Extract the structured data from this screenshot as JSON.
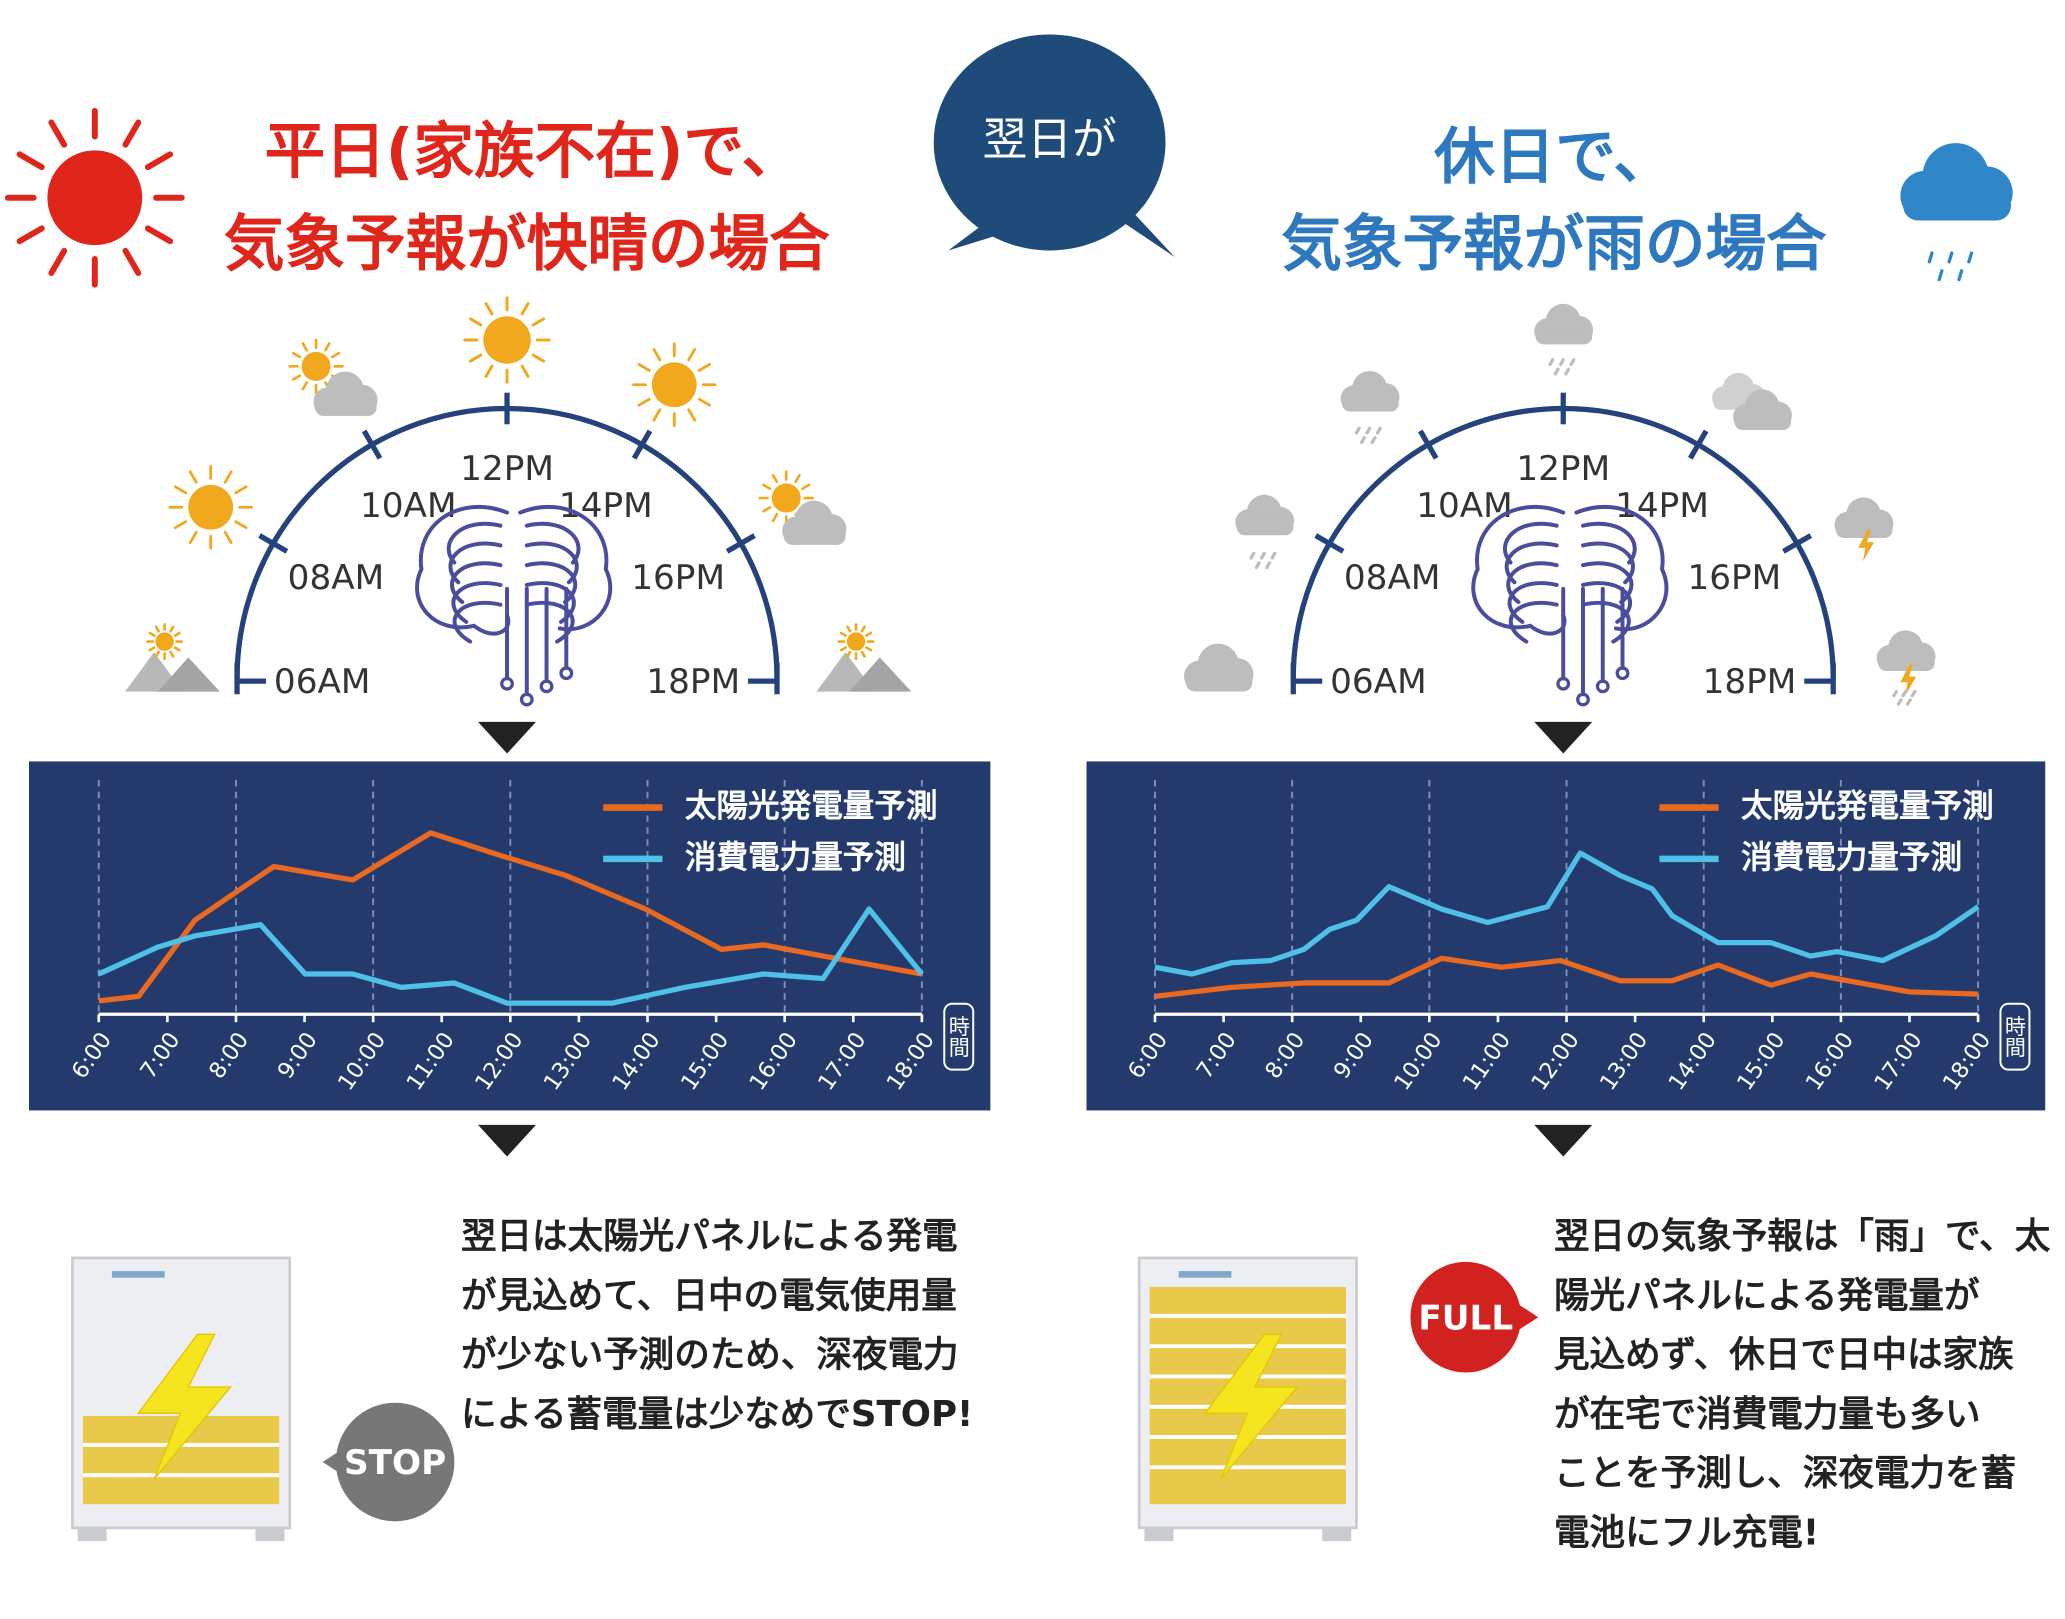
{
  "header": {
    "left_title": [
      "平日(家族不在)で、",
      "気象予報が快晴の場合"
    ],
    "center_bubble": "翌日が",
    "right_title": [
      "休日で、",
      "気象予報が雨の場合"
    ]
  },
  "clocks": [
    {
      "labels": [
        "06AM",
        "08AM",
        "10AM",
        "12PM",
        "14PM",
        "16PM",
        "18PM"
      ]
    },
    {
      "labels": [
        "06AM",
        "08AM",
        "10AM",
        "12PM",
        "14PM",
        "16PM",
        "18PM"
      ]
    }
  ],
  "chart_data": [
    {
      "type": "line",
      "x_axis_label": "時間",
      "xlim": [
        6,
        18
      ],
      "xticks": [
        {
          "value": 6,
          "label": "6:00"
        },
        {
          "value": 7,
          "label": "7:00"
        },
        {
          "value": 8,
          "label": "8:00"
        },
        {
          "value": 9,
          "label": "9:00"
        },
        {
          "value": 10,
          "label": "10:00"
        },
        {
          "value": 11,
          "label": "11:00"
        },
        {
          "value": 12,
          "label": "12:00"
        },
        {
          "value": 13,
          "label": "13:00"
        },
        {
          "value": 14,
          "label": "14:00"
        },
        {
          "value": 15,
          "label": "15:00"
        },
        {
          "value": 16,
          "label": "16:00"
        },
        {
          "value": 17,
          "label": "17:00"
        },
        {
          "value": 18,
          "label": "18:00"
        }
      ],
      "ylim": [
        0,
        100
      ],
      "grid": true,
      "series": [
        {
          "name": "太陽光発電量予測",
          "color": "#e8691f",
          "x": [
            6,
            6.58,
            7.4,
            8.55,
            9.7,
            10.84,
            11.85,
            12.81,
            13.97,
            15.08,
            15.69,
            16.56,
            18
          ],
          "values": [
            6,
            8,
            42,
            66,
            60,
            81,
            71,
            62,
            47,
            29,
            31,
            26,
            18
          ]
        },
        {
          "name": "消費電力量予測",
          "color": "#4fc0e8",
          "x": [
            6,
            6.86,
            7.4,
            8.36,
            9.01,
            9.7,
            10.41,
            11.18,
            11.95,
            13.49,
            14.54,
            15.69,
            16.56,
            17.23,
            18
          ],
          "values": [
            18,
            30,
            35,
            40,
            18,
            18,
            12,
            14,
            5,
            5,
            12,
            18,
            16,
            47,
            18
          ]
        }
      ]
    },
    {
      "type": "line",
      "x_axis_label": "時間",
      "xlim": [
        6,
        18
      ],
      "xticks": [
        {
          "value": 6,
          "label": "6:00"
        },
        {
          "value": 7,
          "label": "7:00"
        },
        {
          "value": 8,
          "label": "8:00"
        },
        {
          "value": 9,
          "label": "9:00"
        },
        {
          "value": 10,
          "label": "10:00"
        },
        {
          "value": 11,
          "label": "11:00"
        },
        {
          "value": 12,
          "label": "12:00"
        },
        {
          "value": 13,
          "label": "13:00"
        },
        {
          "value": 14,
          "label": "14:00"
        },
        {
          "value": 15,
          "label": "15:00"
        },
        {
          "value": 16,
          "label": "16:00"
        },
        {
          "value": 17,
          "label": "17:00"
        },
        {
          "value": 18,
          "label": "18:00"
        }
      ],
      "ylim": [
        0,
        100
      ],
      "grid": true,
      "series": [
        {
          "name": "太陽光発電量予測",
          "color": "#e8691f",
          "x": [
            6,
            7.11,
            8.17,
            9.41,
            10.18,
            11.05,
            11.91,
            12.78,
            13.54,
            14.21,
            14.98,
            15.56,
            17,
            18
          ],
          "values": [
            8,
            12,
            14,
            14,
            25,
            21,
            24,
            15,
            15,
            22,
            13,
            18,
            10,
            9
          ]
        },
        {
          "name": "消費電力量予測",
          "color": "#4fc0e8",
          "x": [
            6,
            6.54,
            7.11,
            7.69,
            8.17,
            8.55,
            8.94,
            9.41,
            10.18,
            10.85,
            11.72,
            12.2,
            12.78,
            13.25,
            13.54,
            14.21,
            14.98,
            15.56,
            15.94,
            16.61,
            17.38,
            18
          ],
          "values": [
            21,
            18,
            23,
            24,
            29,
            38,
            42,
            57,
            47,
            41,
            48,
            72,
            62,
            56,
            44,
            32,
            32,
            26,
            28,
            24,
            35,
            48
          ]
        }
      ]
    }
  ],
  "panels": [
    {
      "badge": "STOP",
      "text": [
        "翌日は太陽光パネルによる発電",
        "が見込めて、日中の電気使用量",
        "が少ない予測のため、深夜電力",
        "による蓄電量は少なめでSTOP!"
      ]
    },
    {
      "badge": "FULL",
      "text": [
        "翌日の気象予報は「雨」で、太",
        "陽光パネルによる発電量が",
        "見込めず、休日で日中は家族",
        "が在宅で消費電力量も多い",
        "ことを予測し、深夜電力を蓄",
        "電池にフル充電!"
      ]
    }
  ]
}
